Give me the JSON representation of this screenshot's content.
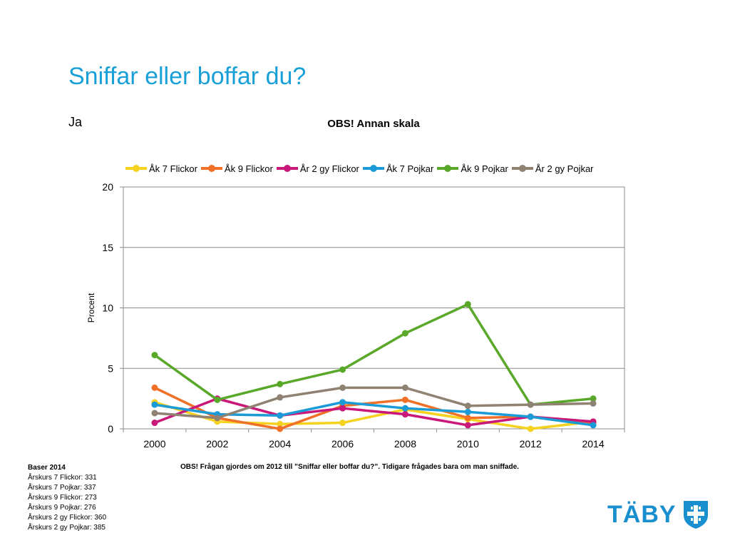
{
  "slide": {
    "title": "Sniffar eller boffar du?",
    "subtitle": "Ja",
    "note": "OBS! Frågan gjordes om 2012 till ”Sniffar eller boffar du?”. Tidigare frågades bara om man sniffade.",
    "baser_title": "Baser 2014",
    "baser_lines": [
      "Årskurs 7 Flickor: 331",
      "Årskurs 7 Pojkar: 337",
      "Årskurs 9 Flickor: 273",
      "Årskurs 9 Pojkar: 276",
      "Årskurs 2 gy Flickor: 360",
      "Årskurs 2 gy Pojkar: 385"
    ],
    "logo_text": "TÄBY",
    "logo_icon": "taby-shield-icon",
    "brand_color": "#1a8fd0"
  },
  "chart_data": {
    "type": "line",
    "title": "OBS! Annan skala",
    "xlabel": "",
    "ylabel": "Procent",
    "x": [
      2000,
      2002,
      2004,
      2006,
      2008,
      2010,
      2012,
      2014
    ],
    "ylim": [
      0,
      20
    ],
    "yticks": [
      0,
      5,
      10,
      15,
      20
    ],
    "grid": true,
    "legend": "top",
    "series": [
      {
        "name": "Åk 7 Flickor",
        "color": "#f5d21f",
        "values": [
          2.2,
          0.6,
          0.4,
          0.5,
          1.6,
          0.8,
          0.0,
          0.6
        ]
      },
      {
        "name": "Åk 9 Flickor",
        "color": "#f07027",
        "values": [
          3.4,
          0.9,
          0.0,
          1.9,
          2.4,
          0.9,
          1.0,
          0.5
        ]
      },
      {
        "name": "År 2 gy Flickor",
        "color": "#c9187a",
        "values": [
          0.5,
          2.5,
          1.1,
          1.7,
          1.2,
          0.3,
          1.0,
          0.6
        ]
      },
      {
        "name": "Åk 7 Pojkar",
        "color": "#1a9ad6",
        "values": [
          2.0,
          1.2,
          1.1,
          2.2,
          1.7,
          1.4,
          1.0,
          0.3
        ]
      },
      {
        "name": "Åk 9 Pojkar",
        "color": "#5aa82a",
        "values": [
          6.1,
          2.4,
          3.7,
          4.9,
          7.9,
          10.3,
          2.0,
          2.5
        ]
      },
      {
        "name": "År 2 gy Pojkar",
        "color": "#8f8272",
        "values": [
          1.3,
          0.9,
          2.6,
          3.4,
          3.4,
          1.9,
          2.0,
          2.1
        ]
      }
    ]
  }
}
